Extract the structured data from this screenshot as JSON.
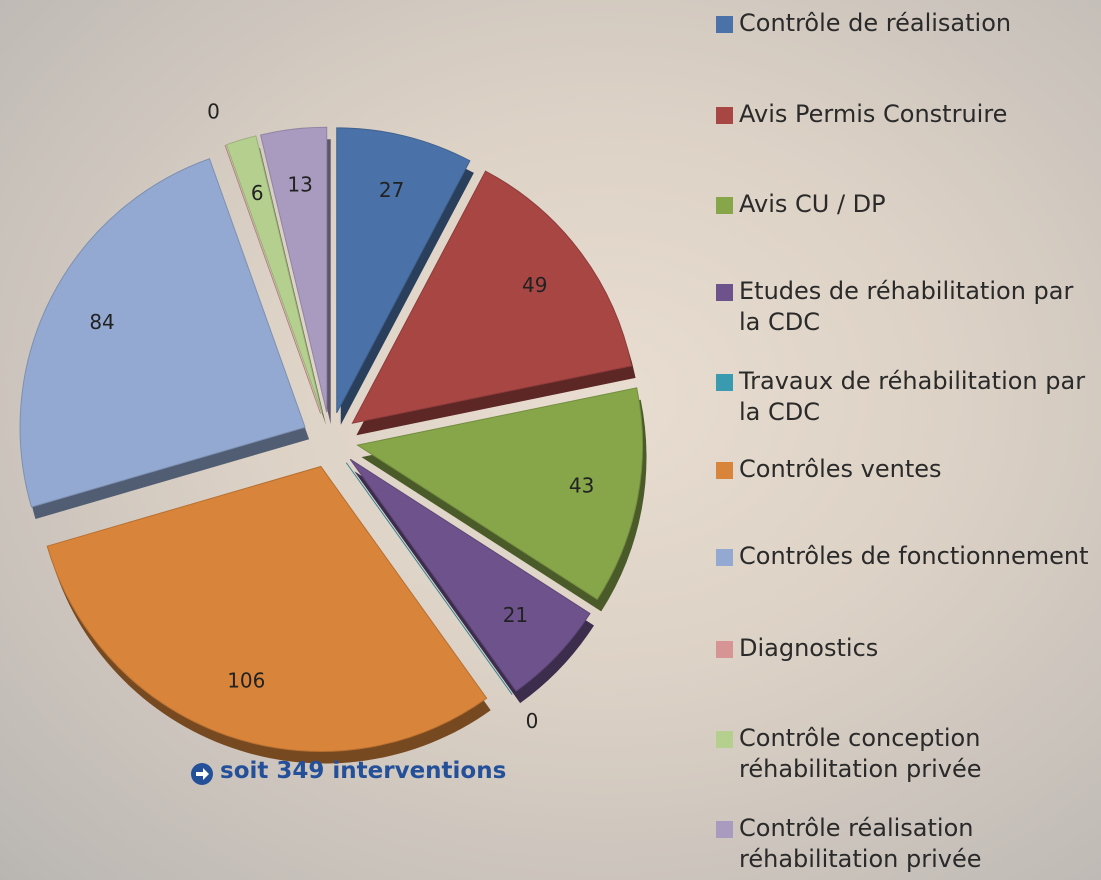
{
  "chart_data": {
    "type": "pie",
    "categories": [
      "Contrôle de réalisation",
      "Avis Permis Construire",
      "Avis CU / DP",
      "Etudes de réhabilitation par la CDC",
      "Travaux de réhabilitation par la CDC",
      "Contrôles ventes",
      "Contrôles de fonctionnement",
      "Diagnostics",
      "Contrôle conception réhabilitation privée",
      "Contrôle réalisation réhabilitation privée"
    ],
    "values": [
      27,
      49,
      43,
      21,
      0,
      106,
      84,
      0,
      6,
      13
    ],
    "colors": [
      "#4a72a8",
      "#a84644",
      "#87a64a",
      "#6e528c",
      "#3a9ab0",
      "#d8843a",
      "#93a9d1",
      "#d69594",
      "#b5cf8f",
      "#a99bc0"
    ],
    "annotation": "soit 349 interventions"
  }
}
